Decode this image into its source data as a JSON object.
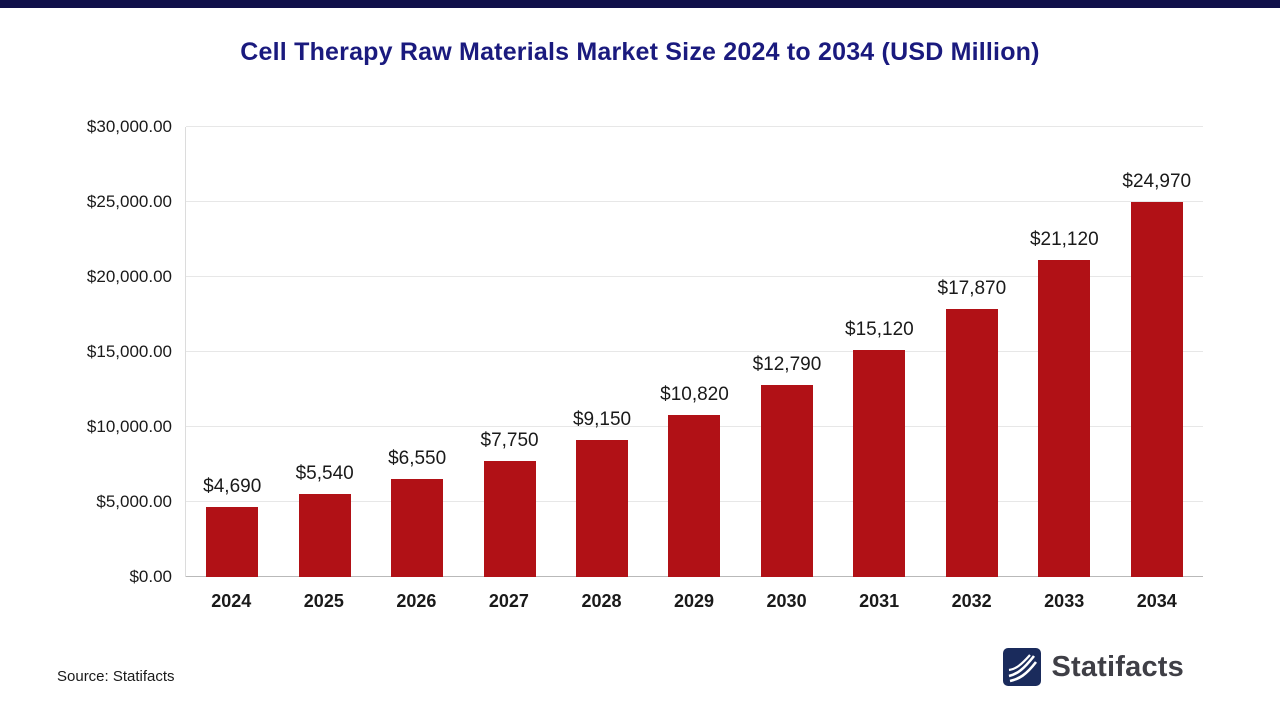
{
  "page": {
    "top_bar_color": "#10104A",
    "background": "#ffffff"
  },
  "title": "Cell Therapy Raw Materials Market Size 2024 to 2034 (USD Million)",
  "source": "Source: Statifacts",
  "brand": {
    "name": "Statifacts",
    "icon_color": "#1A2B5C"
  },
  "chart_data": {
    "type": "bar",
    "title": "Cell Therapy Raw Materials Market Size 2024 to 2034 (USD Million)",
    "categories": [
      "2024",
      "2025",
      "2026",
      "2027",
      "2028",
      "2029",
      "2030",
      "2031",
      "2032",
      "2033",
      "2034"
    ],
    "values": [
      4690,
      5540,
      6550,
      7750,
      9150,
      10820,
      12790,
      15120,
      17870,
      21120,
      24970
    ],
    "value_labels": [
      "$4,690",
      "$5,540",
      "$6,550",
      "$7,750",
      "$9,150",
      "$10,820",
      "$12,790",
      "$15,120",
      "$17,870",
      "$21,120",
      "$24,970"
    ],
    "xlabel": "",
    "ylabel": "",
    "ylim": [
      0,
      30000
    ],
    "ytick_step": 5000,
    "yticks": [
      {
        "value": 0,
        "label": "$0.00"
      },
      {
        "value": 5000,
        "label": "$5,000.00"
      },
      {
        "value": 10000,
        "label": "$10,000.00"
      },
      {
        "value": 15000,
        "label": "$15,000.00"
      },
      {
        "value": 20000,
        "label": "$20,000.00"
      },
      {
        "value": 25000,
        "label": "$25,000.00"
      },
      {
        "value": 30000,
        "label": "$30,000.00"
      }
    ],
    "grid": true,
    "legend": false,
    "bar_color": "#B11116"
  }
}
